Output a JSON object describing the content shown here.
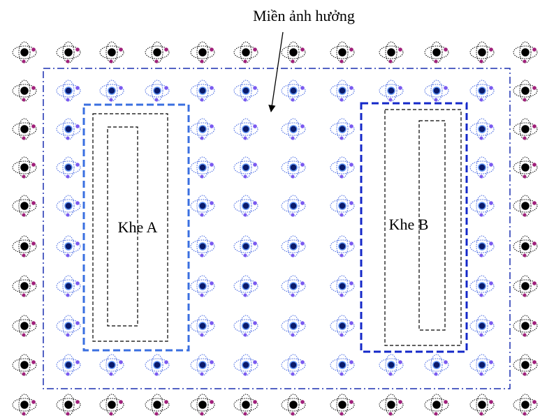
{
  "annotation": "Miền ảnh hưởng",
  "slits": [
    {
      "label": "Khe A"
    },
    {
      "label": "Khe B"
    }
  ]
}
